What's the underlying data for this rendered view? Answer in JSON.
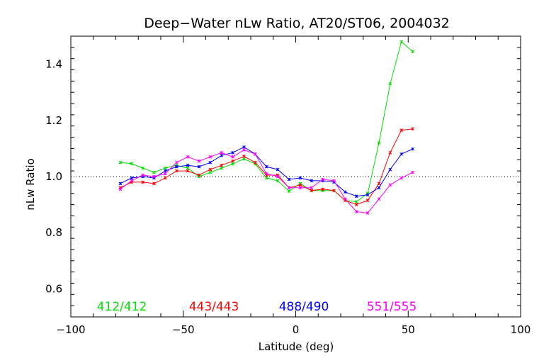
{
  "chart_data": {
    "type": "line",
    "title": "Deep−Water nLw Ratio, AT20/ST06, 2004032",
    "xlabel": "Latitude (deg)",
    "ylabel": "nLw Ratio",
    "xlim": [
      -100,
      100
    ],
    "ylim": [
      0.5,
      1.5
    ],
    "xticks": [
      -100,
      -50,
      0,
      50,
      100
    ],
    "xtick_labels": [
      "−100",
      "−50",
      "0",
      "50",
      "100"
    ],
    "yticks": [
      0.6,
      0.8,
      1.0,
      1.2,
      1.4
    ],
    "ytick_labels": [
      "0.6",
      "0.8",
      "1.0",
      "1.2",
      "1.4"
    ],
    "reference_line": {
      "y": 1.0,
      "style": "dotted"
    },
    "grid": false,
    "legend_position": "bottom, inside plot",
    "x": [
      -78,
      -73,
      -68,
      -63,
      -58,
      -53,
      -48,
      -43,
      -38,
      -33,
      -28,
      -23,
      -18,
      -13,
      -8,
      -3,
      2,
      7,
      12,
      17,
      22,
      27,
      32,
      37,
      42,
      47,
      52
    ],
    "series": [
      {
        "name": "412/412",
        "color": "#00e000",
        "values": [
          1.05,
          1.046,
          1.03,
          1.015,
          1.03,
          1.04,
          1.03,
          1.0,
          1.015,
          1.03,
          1.045,
          1.063,
          1.045,
          0.995,
          0.985,
          0.948,
          0.975,
          0.95,
          0.95,
          0.95,
          0.915,
          0.91,
          0.94,
          1.12,
          1.33,
          1.48,
          1.445
        ]
      },
      {
        "name": "443/443",
        "color": "#ff0000",
        "values": [
          0.96,
          0.98,
          0.98,
          0.975,
          0.995,
          1.02,
          1.02,
          1.005,
          1.025,
          1.04,
          1.055,
          1.072,
          1.05,
          1.005,
          1.005,
          0.96,
          0.97,
          0.95,
          0.955,
          0.95,
          0.915,
          0.9,
          0.915,
          0.975,
          1.085,
          1.165,
          1.17
        ]
      },
      {
        "name": "488/490",
        "color": "#0000ff",
        "values": [
          0.975,
          0.995,
          1.0,
          0.995,
          1.02,
          1.035,
          1.04,
          1.035,
          1.05,
          1.075,
          1.085,
          1.105,
          1.08,
          1.035,
          1.025,
          0.99,
          0.995,
          0.985,
          0.985,
          0.98,
          0.945,
          0.93,
          0.935,
          0.96,
          1.025,
          1.08,
          1.098
        ]
      },
      {
        "name": "551/555",
        "color": "#ff00ff",
        "values": [
          0.955,
          0.985,
          1.005,
          1.0,
          1.01,
          1.05,
          1.07,
          1.055,
          1.07,
          1.085,
          1.07,
          1.095,
          1.08,
          1.01,
          1.0,
          0.96,
          0.96,
          0.96,
          0.99,
          0.985,
          0.92,
          0.875,
          0.87,
          0.92,
          0.97,
          0.995,
          1.015
        ]
      }
    ]
  }
}
